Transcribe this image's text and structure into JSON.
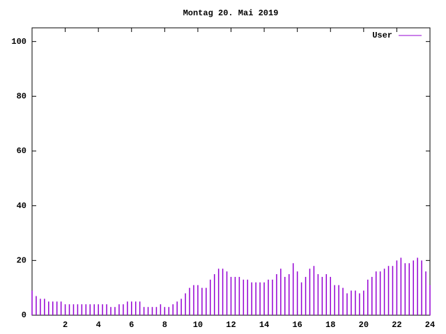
{
  "chart_data": {
    "type": "impulses",
    "title": "Montag 20. Mai 2019",
    "x": [
      0,
      0.25,
      0.5,
      0.75,
      1,
      1.25,
      1.5,
      1.75,
      2,
      2.25,
      2.5,
      2.75,
      3,
      3.25,
      3.5,
      3.75,
      4,
      4.25,
      4.5,
      4.75,
      5,
      5.25,
      5.5,
      5.75,
      6,
      6.25,
      6.5,
      6.75,
      7,
      7.25,
      7.5,
      7.75,
      8,
      8.25,
      8.5,
      8.75,
      9,
      9.25,
      9.5,
      9.75,
      10,
      10.25,
      10.5,
      10.75,
      11,
      11.25,
      11.5,
      11.75,
      12,
      12.25,
      12.5,
      12.75,
      13,
      13.25,
      13.5,
      13.75,
      14,
      14.25,
      14.5,
      14.75,
      15,
      15.25,
      15.5,
      15.75,
      16,
      16.25,
      16.5,
      16.75,
      17,
      17.25,
      17.5,
      17.75,
      18,
      18.25,
      18.5,
      18.75,
      19,
      19.25,
      19.5,
      19.75,
      20,
      20.25,
      20.5,
      20.75,
      21,
      21.25,
      21.5,
      21.75,
      22,
      22.25,
      22.5,
      22.75,
      23,
      23.25,
      23.5,
      23.75,
      24
    ],
    "series": [
      {
        "name": "User",
        "color": "#9400d3",
        "values": [
          9,
          7,
          6,
          6,
          5,
          5,
          5,
          5,
          4,
          4,
          4,
          4,
          4,
          4,
          4,
          4,
          4,
          4,
          4,
          3,
          3,
          4,
          4,
          5,
          5,
          5,
          5,
          3,
          3,
          3,
          3,
          4,
          3,
          3,
          4,
          5,
          6,
          8,
          10,
          11,
          11,
          10,
          10,
          13,
          15,
          17,
          17,
          16,
          14,
          14,
          14,
          13,
          13,
          12,
          12,
          12,
          12,
          13,
          13,
          15,
          17,
          14,
          15,
          19,
          16,
          12,
          14,
          17,
          18,
          15,
          14,
          15,
          14,
          11,
          11,
          10,
          8,
          9,
          9,
          8,
          9,
          13,
          14,
          16,
          16,
          17,
          18,
          18,
          20,
          21,
          19,
          19,
          20,
          21,
          20,
          16,
          11
        ]
      }
    ],
    "xlim": [
      0,
      24
    ],
    "ylim": [
      0,
      105
    ],
    "xticks": [
      2,
      4,
      6,
      8,
      10,
      12,
      14,
      16,
      18,
      20,
      22,
      24
    ],
    "yticks": [
      0,
      20,
      40,
      60,
      80,
      100
    ],
    "legend": "top-right"
  }
}
